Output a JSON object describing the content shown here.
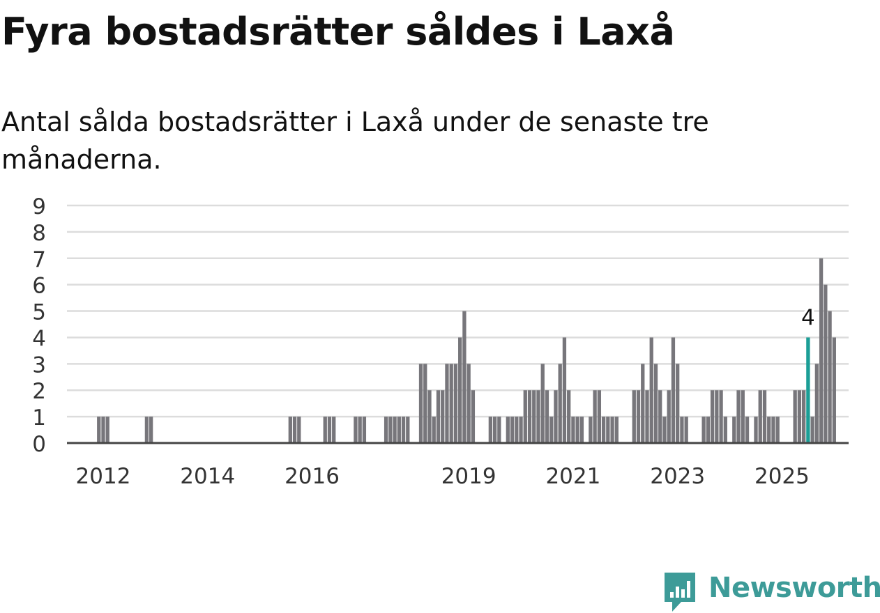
{
  "header": {
    "title": "Fyra bostadsrätter såldes i Laxå",
    "subtitle": "Antal sålda bostadsrätter i Laxå under de senaste tre månaderna."
  },
  "chart_data": {
    "type": "bar",
    "title": "Fyra bostadsrätter såldes i Laxå",
    "subtitle": "Antal sålda bostadsrätter i Laxå under de senaste tre månaderna.",
    "xlabel": "",
    "ylabel": "",
    "x_start": "2011-01",
    "x_end": "2025-07",
    "x_ticks": [
      {
        "label": "2012",
        "date": "2012-01"
      },
      {
        "label": "2014",
        "date": "2014-01"
      },
      {
        "label": "2016",
        "date": "2016-01"
      },
      {
        "label": "2019",
        "date": "2019-01"
      },
      {
        "label": "2021",
        "date": "2021-01"
      },
      {
        "label": "2023",
        "date": "2023-01"
      },
      {
        "label": "2025",
        "date": "2025-01"
      }
    ],
    "y_ticks": [
      0,
      1,
      2,
      3,
      4,
      5,
      6,
      7,
      8,
      9
    ],
    "ylim": [
      0,
      9
    ],
    "grid": true,
    "highlight": {
      "date": "2025-07",
      "value": 4,
      "label": "4"
    },
    "colors": {
      "bar": "#77767b",
      "highlight": "#1b9e96",
      "grid": "#dcdcdc",
      "axis": "#444444",
      "text": "#333333"
    },
    "x": [
      "2011-12",
      "2012-01",
      "2012-02",
      "2012-11",
      "2012-12",
      "2015-08",
      "2015-09",
      "2015-10",
      "2016-04",
      "2016-05",
      "2016-06",
      "2016-11",
      "2016-12",
      "2017-01",
      "2017-06",
      "2017-07",
      "2017-08",
      "2017-09",
      "2017-10",
      "2017-11",
      "2018-02",
      "2018-03",
      "2018-04",
      "2018-05",
      "2018-06",
      "2018-07",
      "2018-08",
      "2018-09",
      "2018-10",
      "2018-11",
      "2018-12",
      "2019-01",
      "2019-02",
      "2019-06",
      "2019-07",
      "2019-08",
      "2019-10",
      "2019-11",
      "2019-12",
      "2020-01",
      "2020-02",
      "2020-03",
      "2020-04",
      "2020-05",
      "2020-06",
      "2020-07",
      "2020-08",
      "2020-09",
      "2020-10",
      "2020-11",
      "2020-12",
      "2021-01",
      "2021-02",
      "2021-03",
      "2021-05",
      "2021-06",
      "2021-07",
      "2021-08",
      "2021-09",
      "2021-10",
      "2021-11",
      "2022-03",
      "2022-04",
      "2022-05",
      "2022-06",
      "2022-07",
      "2022-08",
      "2022-09",
      "2022-10",
      "2022-11",
      "2022-12",
      "2023-01",
      "2023-02",
      "2023-03",
      "2023-07",
      "2023-08",
      "2023-09",
      "2023-10",
      "2023-11",
      "2023-12",
      "2024-02",
      "2024-03",
      "2024-04",
      "2024-05",
      "2024-07",
      "2024-08",
      "2024-09",
      "2024-10",
      "2024-11",
      "2024-12",
      "2025-04",
      "2025-05",
      "2025-06",
      "2025-08",
      "2025-09",
      "2025-10",
      "2025-11",
      "2025-12",
      "2026-01"
    ],
    "values": [
      1,
      1,
      1,
      1,
      1,
      1,
      1,
      1,
      1,
      1,
      1,
      1,
      1,
      1,
      1,
      1,
      1,
      1,
      1,
      1,
      3,
      3,
      2,
      1,
      2,
      2,
      3,
      3,
      3,
      4,
      5,
      3,
      2,
      1,
      1,
      1,
      1,
      1,
      1,
      1,
      2,
      2,
      2,
      2,
      3,
      2,
      1,
      2,
      3,
      4,
      2,
      1,
      1,
      1,
      1,
      2,
      2,
      1,
      1,
      1,
      1,
      2,
      2,
      3,
      2,
      4,
      3,
      2,
      1,
      2,
      4,
      3,
      1,
      1,
      1,
      1,
      2,
      2,
      2,
      1,
      1,
      2,
      2,
      1,
      1,
      2,
      2,
      1,
      1,
      1,
      2,
      2,
      2,
      1,
      3,
      7,
      6,
      5,
      4
    ]
  },
  "brand": {
    "name": "Newsworthy",
    "logo_icon": "newsworthy-chart-bubble-icon",
    "color": "#3d9b98"
  }
}
